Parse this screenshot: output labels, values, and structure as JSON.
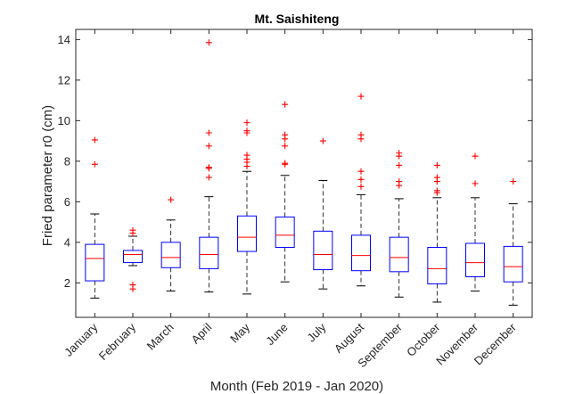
{
  "chart_data": {
    "type": "box",
    "title": "Mt. Saishiteng",
    "xlabel": "Month (Feb 2019 - Jan 2020)",
    "ylabel": "Fried parameter r0 (cm)",
    "ylim": [
      0.3,
      14.5
    ],
    "yticks": [
      2,
      4,
      6,
      8,
      10,
      12,
      14
    ],
    "grid": false,
    "box_color": "#0000ff",
    "median_color": "#ff0000",
    "outlier_color": "#ff0000",
    "whisker_color": "#000000",
    "categories": [
      "January",
      "February",
      "March",
      "April",
      "May",
      "June",
      "July",
      "August",
      "September",
      "October",
      "November",
      "December"
    ],
    "boxes": [
      {
        "whisker_low": 1.25,
        "q1": 2.1,
        "median": 3.2,
        "q3": 3.9,
        "whisker_high": 5.4,
        "outliers": [
          7.85,
          9.05
        ]
      },
      {
        "whisker_low": 2.85,
        "q1": 3.0,
        "median": 3.4,
        "q3": 3.6,
        "whisker_high": 4.3,
        "outliers": [
          1.7,
          1.9,
          4.45,
          4.6
        ]
      },
      {
        "whisker_low": 1.6,
        "q1": 2.75,
        "median": 3.25,
        "q3": 4.0,
        "whisker_high": 5.1,
        "outliers": [
          6.1
        ]
      },
      {
        "whisker_low": 1.55,
        "q1": 2.7,
        "median": 3.4,
        "q3": 4.25,
        "whisker_high": 6.25,
        "outliers": [
          7.2,
          7.65,
          7.7,
          8.75,
          9.4,
          13.85
        ]
      },
      {
        "whisker_low": 1.45,
        "q1": 3.55,
        "median": 4.25,
        "q3": 5.3,
        "whisker_high": 7.5,
        "outliers": [
          7.75,
          7.95,
          8.1,
          8.3,
          9.4,
          9.5,
          9.9
        ]
      },
      {
        "whisker_low": 2.05,
        "q1": 3.75,
        "median": 4.35,
        "q3": 5.25,
        "whisker_high": 7.3,
        "outliers": [
          7.85,
          7.9,
          8.75,
          9.1,
          9.3,
          10.8
        ]
      },
      {
        "whisker_low": 1.7,
        "q1": 2.65,
        "median": 3.4,
        "q3": 4.55,
        "whisker_high": 7.05,
        "outliers": [
          9.0
        ]
      },
      {
        "whisker_low": 1.85,
        "q1": 2.6,
        "median": 3.35,
        "q3": 4.35,
        "whisker_high": 6.35,
        "outliers": [
          6.75,
          7.1,
          7.5,
          9.1,
          9.3,
          11.2
        ]
      },
      {
        "whisker_low": 1.3,
        "q1": 2.55,
        "median": 3.25,
        "q3": 4.25,
        "whisker_high": 6.15,
        "outliers": [
          6.8,
          7.0,
          7.8,
          8.25,
          8.4
        ]
      },
      {
        "whisker_low": 1.05,
        "q1": 1.95,
        "median": 2.7,
        "q3": 3.75,
        "whisker_high": 6.2,
        "outliers": [
          6.45,
          6.55,
          7.0,
          7.2,
          7.8
        ]
      },
      {
        "whisker_low": 1.6,
        "q1": 2.3,
        "median": 3.0,
        "q3": 3.95,
        "whisker_high": 6.2,
        "outliers": [
          6.9,
          8.25
        ]
      },
      {
        "whisker_low": 0.9,
        "q1": 2.05,
        "median": 2.8,
        "q3": 3.8,
        "whisker_high": 5.9,
        "outliers": [
          7.0
        ]
      }
    ]
  }
}
